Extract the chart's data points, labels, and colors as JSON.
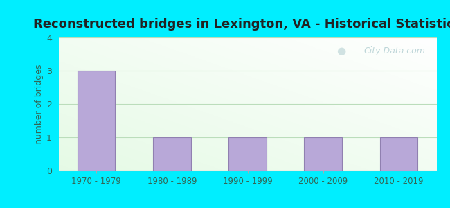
{
  "title": "Reconstructed bridges in Lexington, VA - Historical Statistics",
  "categories": [
    "1970 - 1979",
    "1980 - 1989",
    "1990 - 1999",
    "2000 - 2009",
    "2010 - 2019"
  ],
  "values": [
    3,
    1,
    1,
    1,
    1
  ],
  "bar_color": "#b8a8d8",
  "bar_edge_color": "#9080b0",
  "ylabel": "number of bridges",
  "ylim": [
    0,
    4
  ],
  "yticks": [
    0,
    1,
    2,
    3,
    4
  ],
  "title_fontsize": 13,
  "title_color": "#222222",
  "ylabel_color": "#336655",
  "background_outer": "#00EEFF",
  "watermark_text": "City-Data.com",
  "grid_color": "#bbddbb",
  "tick_label_color": "#336655",
  "axis_label_fontsize": 9,
  "bar_width": 0.5
}
